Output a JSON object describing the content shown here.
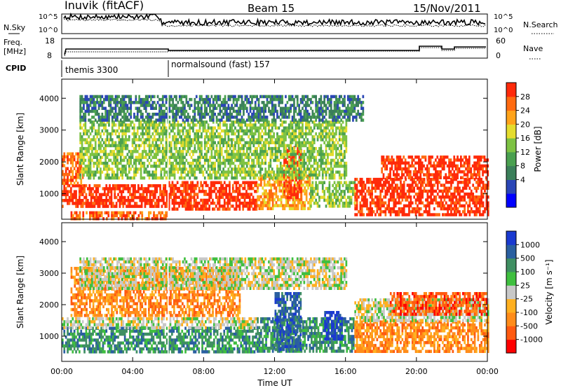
{
  "header": {
    "station": "Inuvik (fitACF)",
    "beam": "Beam 15",
    "date": "15/Nov/2011"
  },
  "strip_panels": {
    "nsky": {
      "label": "N.Sky",
      "ticks": [
        "10^5",
        "10^0"
      ]
    },
    "nsearch": {
      "label": "N.Search",
      "ticks": [
        "10^5",
        "10^0"
      ]
    },
    "freq": {
      "label_line1": "Freq.",
      "label_line2": "[MHz]",
      "ticks": [
        "18",
        "8"
      ]
    },
    "nave": {
      "label": "Nave",
      "ticks": [
        "60",
        "0"
      ]
    },
    "cpid": {
      "label": "CPID",
      "segments": [
        {
          "name": "themis 3300",
          "start_hour": 0,
          "end_hour": 6
        },
        {
          "name": "normalsound (fast) 157",
          "start_hour": 6,
          "end_hour": 24
        }
      ]
    }
  },
  "chart_data": [
    {
      "type": "heatmap",
      "title": "Power",
      "xlabel": "Time UT",
      "ylabel": "Slant Range [km]",
      "xlim_hours": [
        0,
        24
      ],
      "ylim_km": [
        200,
        4600
      ],
      "x_ticks": [
        "00:00",
        "04:00",
        "08:00",
        "12:00",
        "16:00",
        "20:00",
        "00:00"
      ],
      "y_ticks": [
        "1000",
        "2000",
        "3000",
        "4000"
      ],
      "colorbar": {
        "label": "Power [dB]",
        "ticks": [
          "28",
          "24",
          "20",
          "16",
          "12",
          "8",
          "4"
        ],
        "colors": [
          "#0000ff",
          "#2a46b6",
          "#3b7f5a",
          "#4aa050",
          "#7dc243",
          "#e4dc2e",
          "#ffa31a",
          "#ff6a10",
          "#ff2a0a"
        ]
      },
      "regions": [
        {
          "t0": 0.0,
          "t1": 6.0,
          "r0": 600,
          "r1": 1300,
          "level": 8
        },
        {
          "t0": 0.0,
          "t1": 1.2,
          "r0": 1300,
          "r1": 2300,
          "level": 7
        },
        {
          "t0": 6.0,
          "t1": 11.0,
          "r0": 500,
          "r1": 1400,
          "level": 8
        },
        {
          "t0": 11.0,
          "t1": 14.0,
          "r0": 500,
          "r1": 1600,
          "level": 6
        },
        {
          "t0": 12.5,
          "t1": 13.5,
          "r0": 900,
          "r1": 2500,
          "level": 8
        },
        {
          "t0": 14.0,
          "t1": 16.5,
          "r0": 600,
          "r1": 1400,
          "level": 4
        },
        {
          "t0": 16.5,
          "t1": 24.0,
          "r0": 300,
          "r1": 1500,
          "level": 8
        },
        {
          "t0": 18.0,
          "t1": 24.0,
          "r0": 1500,
          "r1": 2200,
          "level": 8
        },
        {
          "t0": 1.0,
          "t1": 16.0,
          "r0": 1500,
          "r1": 3300,
          "level": 4
        },
        {
          "t0": 0.5,
          "t1": 6.0,
          "r0": 250,
          "r1": 450,
          "level": 7
        },
        {
          "t0": 1.0,
          "t1": 17.0,
          "r0": 3300,
          "r1": 4100,
          "level": 2
        }
      ]
    },
    {
      "type": "heatmap",
      "title": "Velocity",
      "xlabel": "Time UT",
      "ylabel": "Slant Range [km]",
      "xlim_hours": [
        0,
        24
      ],
      "ylim_km": [
        200,
        4600
      ],
      "x_ticks": [
        "00:00",
        "04:00",
        "08:00",
        "12:00",
        "16:00",
        "20:00",
        "00:00"
      ],
      "y_ticks": [
        "1000",
        "2000",
        "3000",
        "4000"
      ],
      "colorbar": {
        "label": "Velocity [m s⁻¹]",
        "ticks": [
          "1000",
          "500",
          "100",
          "25",
          "-25",
          "-100",
          "-500",
          "-1000"
        ],
        "colors": [
          "#ff0000",
          "#ff5a10",
          "#ff8c1a",
          "#ffb020",
          "#c8c8c8",
          "#3fbf3f",
          "#3f8f62",
          "#2a5fa0",
          "#1a3ad0"
        ]
      },
      "regions": [
        {
          "t0": 0.0,
          "t1": 11.0,
          "r0": 500,
          "r1": 1300,
          "level": 6
        },
        {
          "t0": 0.0,
          "t1": 11.0,
          "r0": 1300,
          "r1": 1600,
          "level": 4
        },
        {
          "t0": 11.0,
          "t1": 16.5,
          "r0": 500,
          "r1": 1600,
          "level": 6
        },
        {
          "t0": 12.0,
          "t1": 13.5,
          "r0": 600,
          "r1": 2400,
          "level": 7
        },
        {
          "t0": 14.8,
          "t1": 15.8,
          "r0": 900,
          "r1": 1800,
          "level": 8
        },
        {
          "t0": 16.5,
          "t1": 24.0,
          "r0": 500,
          "r1": 1500,
          "level": 2
        },
        {
          "t0": 16.5,
          "t1": 24.0,
          "r0": 1500,
          "r1": 2200,
          "level": 4
        },
        {
          "t0": 18.5,
          "t1": 24.0,
          "r0": 1700,
          "r1": 2400,
          "level": 1
        },
        {
          "t0": 0.5,
          "t1": 10.0,
          "r0": 1700,
          "r1": 3200,
          "level": 2
        },
        {
          "t0": 1.0,
          "t1": 16.0,
          "r0": 2500,
          "r1": 3500,
          "level": 4
        }
      ]
    }
  ]
}
